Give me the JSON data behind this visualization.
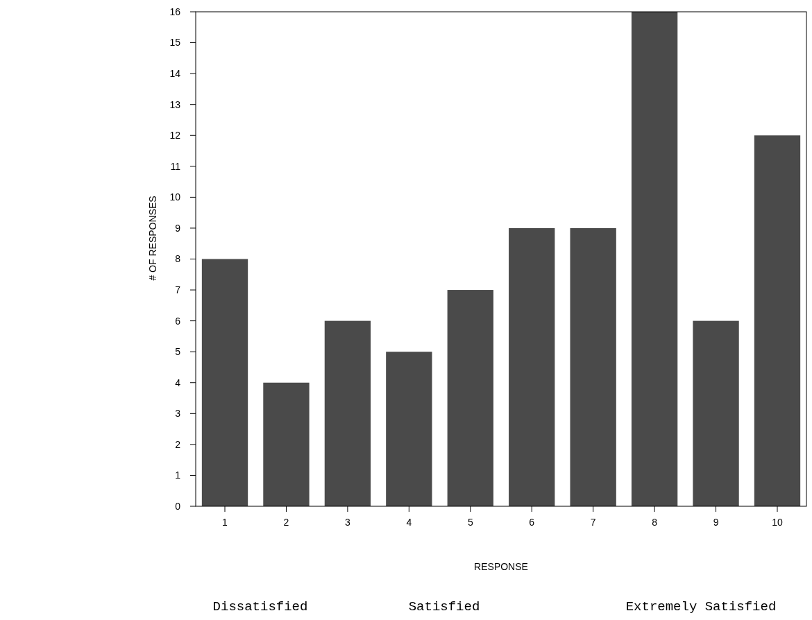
{
  "chart_data": {
    "type": "bar",
    "xlabel": "RESPONSE",
    "ylabel": "# OF RESPONSES",
    "categories": [
      "1",
      "2",
      "3",
      "4",
      "5",
      "6",
      "7",
      "8",
      "9",
      "10"
    ],
    "values": [
      8,
      4,
      6,
      5,
      7,
      9,
      9,
      16,
      6,
      12
    ],
    "color": "#4a4a4a",
    "ylim": [
      0,
      16
    ],
    "yticks": [
      0,
      1,
      2,
      3,
      4,
      5,
      6,
      7,
      8,
      9,
      10,
      11,
      12,
      13,
      14,
      15,
      16
    ],
    "annotations": [
      "Dissatisfied",
      "Satisfied",
      "Extremely Satisfied"
    ]
  }
}
